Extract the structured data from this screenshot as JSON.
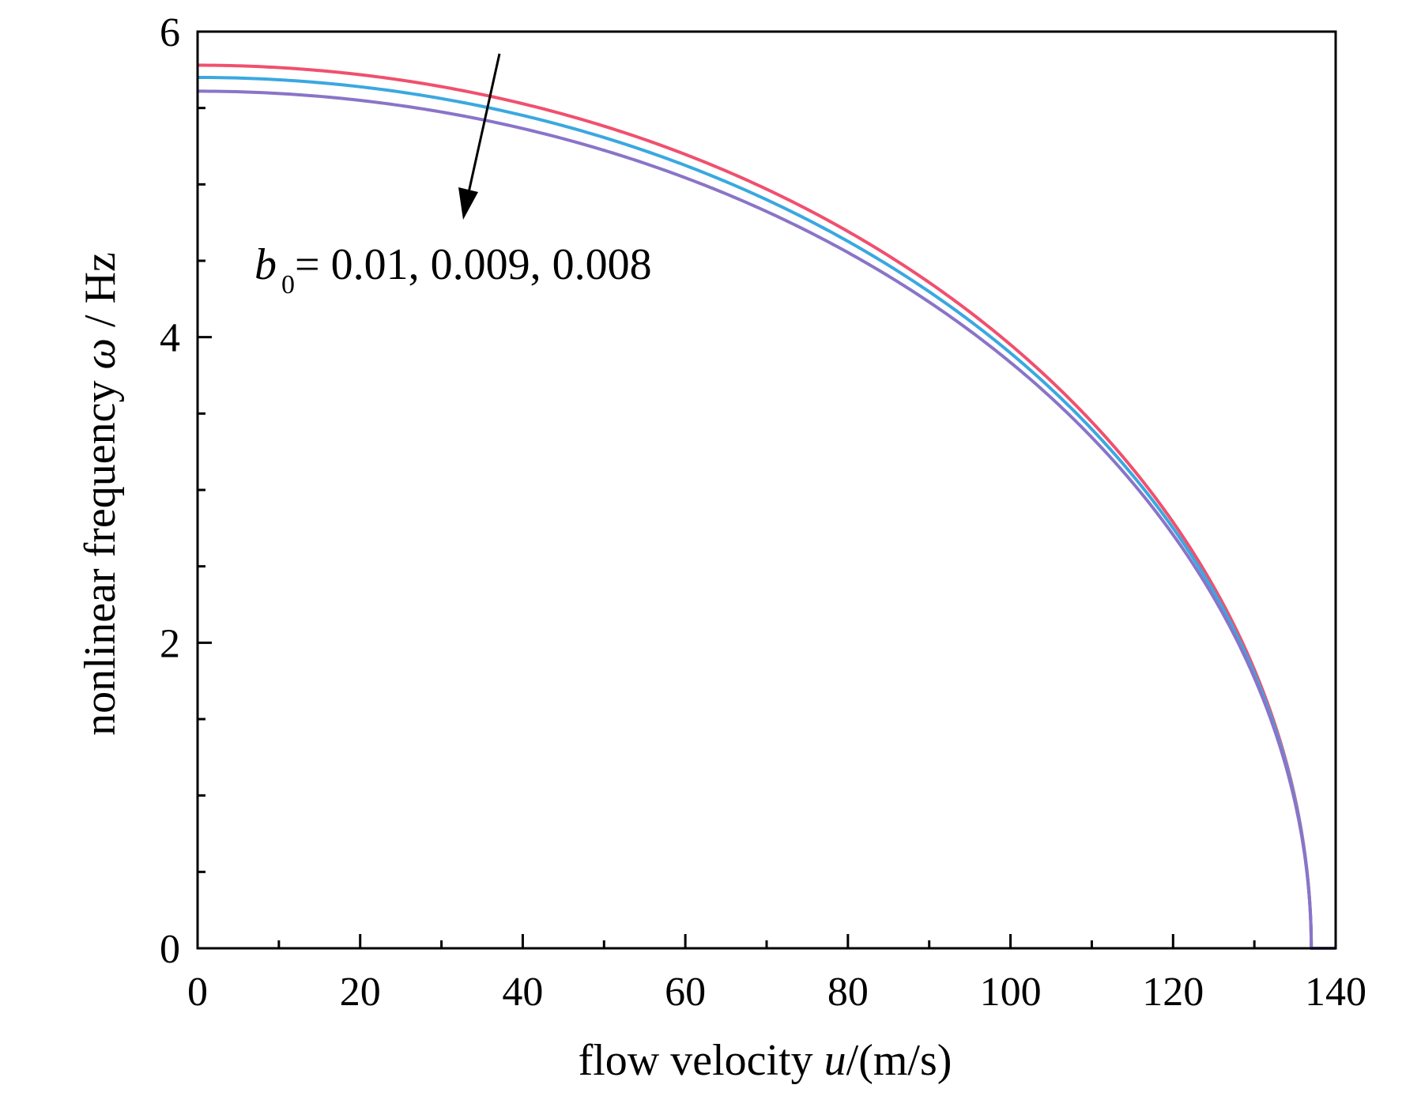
{
  "chart_data": {
    "type": "line",
    "xlabel": {
      "prefix": "flow velocity ",
      "var": "u",
      "suffix": "/(m/s)"
    },
    "ylabel": {
      "prefix": "nonlinear frequency ",
      "var": "ω",
      "suffix": " / Hz"
    },
    "xlim": [
      0,
      140
    ],
    "ylim": [
      0,
      6
    ],
    "x_ticks": [
      "0",
      "20",
      "40",
      "60",
      "80",
      "100",
      "120",
      "140"
    ],
    "y_ticks": [
      "0",
      "2",
      "4",
      "6"
    ],
    "x_minor_step": 10,
    "y_minor_step": 0.5,
    "grid": false,
    "annotation": {
      "var": "b",
      "subscript": "0",
      "text": "= 0.01, 0.009, 0.008",
      "arrow": "points down toward decreasing b0"
    },
    "curve_model": "omega = w0 * sqrt(1 - (u / 137)^2)",
    "critical_velocity": 137,
    "series": [
      {
        "w0": 5.78,
        "color": "#f0506e"
      },
      {
        "w0": 5.7,
        "color": "#3aa8e0"
      },
      {
        "w0": 5.61,
        "color": "#8a74c8"
      }
    ]
  }
}
